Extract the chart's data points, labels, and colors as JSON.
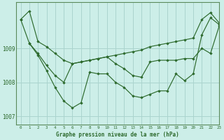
{
  "title": "Graphe pression niveau de la mer (hPa)",
  "background_color": "#cceee8",
  "grid_color": "#aad4ce",
  "line_color": "#2d6a2d",
  "marker_color": "#2d6a2d",
  "xlim": [
    -0.5,
    23
  ],
  "ylim": [
    1006.75,
    1010.35
  ],
  "yticks": [
    1007,
    1008,
    1009
  ],
  "xticks": [
    0,
    1,
    2,
    3,
    4,
    5,
    6,
    7,
    8,
    9,
    10,
    11,
    12,
    13,
    14,
    15,
    16,
    17,
    18,
    19,
    20,
    21,
    22,
    23
  ],
  "series": [
    {
      "x": [
        0,
        1,
        2,
        3,
        4,
        5,
        6,
        7,
        8,
        9,
        10,
        11,
        12,
        13,
        14,
        15,
        16,
        17,
        18,
        19,
        20,
        21,
        22,
        23
      ],
      "y": [
        1009.85,
        1010.1,
        1009.2,
        1009.05,
        1008.85,
        1008.65,
        1008.55,
        1008.6,
        1008.65,
        1008.7,
        1008.75,
        1008.8,
        1008.85,
        1008.9,
        1008.95,
        1009.05,
        1009.1,
        1009.15,
        1009.2,
        1009.25,
        1009.3,
        1009.85,
        1010.05,
        1009.75
      ]
    },
    {
      "x": [
        0,
        1,
        2,
        3,
        4,
        5,
        6,
        7,
        8,
        9,
        10,
        11,
        12,
        13,
        14,
        15,
        16,
        17,
        18,
        19,
        20,
        21,
        22,
        23
      ],
      "y": [
        1009.85,
        1009.15,
        1008.85,
        1008.5,
        1008.2,
        1008.0,
        1008.55,
        1008.6,
        1008.65,
        1008.7,
        1008.75,
        1008.55,
        1008.4,
        1008.2,
        1008.15,
        1008.6,
        1008.65,
        1008.65,
        1008.65,
        1008.7,
        1008.7,
        1009.0,
        1008.85,
        1009.65
      ]
    },
    {
      "x": [
        1,
        2,
        3,
        4,
        5,
        6,
        7,
        8,
        9,
        10,
        11,
        12,
        13,
        14,
        15,
        16,
        17,
        18,
        19,
        20,
        21,
        22,
        23
      ],
      "y": [
        1009.15,
        1008.8,
        1008.35,
        1007.85,
        1007.45,
        1007.25,
        1007.4,
        1008.3,
        1008.25,
        1008.25,
        1008.0,
        1007.85,
        1007.6,
        1007.55,
        1007.65,
        1007.75,
        1007.75,
        1008.25,
        1008.05,
        1008.25,
        1009.4,
        1009.9,
        1009.7
      ]
    }
  ]
}
